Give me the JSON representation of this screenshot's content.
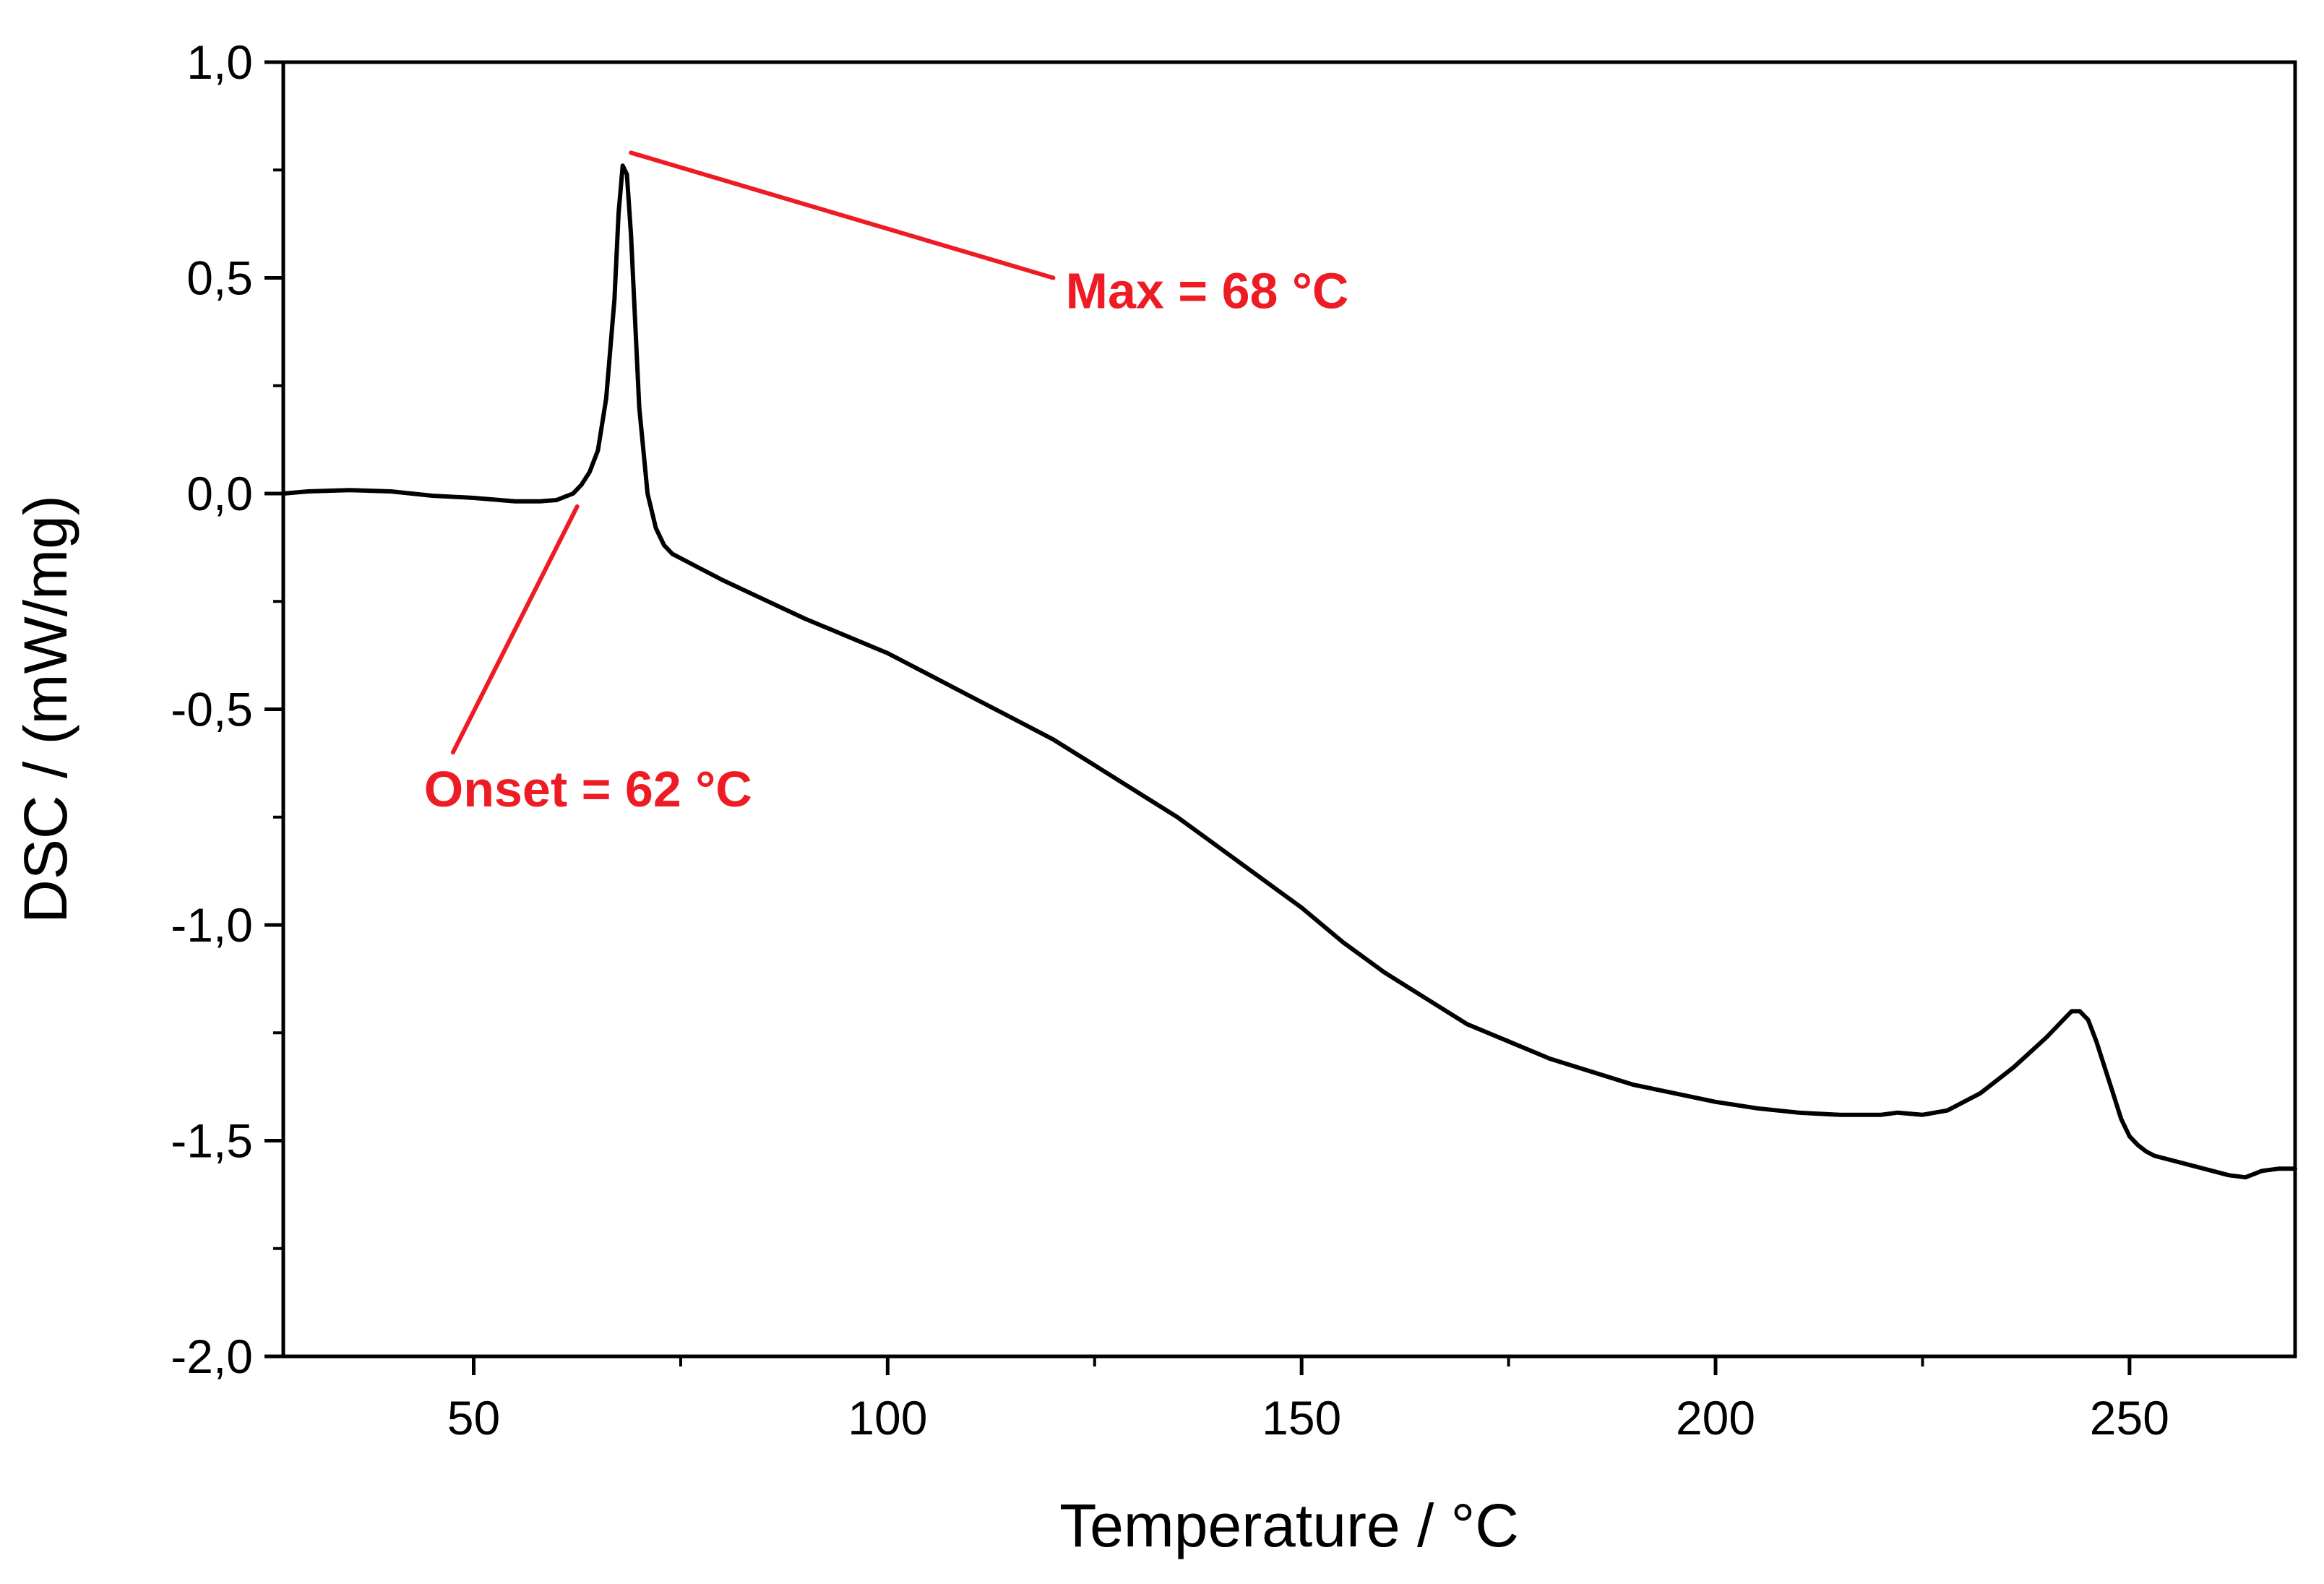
{
  "chart_data": {
    "type": "line",
    "title": "",
    "xlabel": "Temperature / °C",
    "ylabel": "DSC / (mW/mg)",
    "xlim": [
      27,
      270
    ],
    "ylim": [
      -2.0,
      1.0
    ],
    "x_ticks": [
      {
        "value": 50,
        "label": "50"
      },
      {
        "value": 100,
        "label": "100"
      },
      {
        "value": 150,
        "label": "150"
      },
      {
        "value": 200,
        "label": "200"
      },
      {
        "value": 250,
        "label": "250"
      }
    ],
    "x_minor_ticks": [
      75,
      125,
      175,
      225
    ],
    "y_ticks": [
      {
        "value": 1.0,
        "label": "1,0"
      },
      {
        "value": 0.5,
        "label": "0,5"
      },
      {
        "value": 0.0,
        "label": "0,0"
      },
      {
        "value": -0.5,
        "label": "-0,5"
      },
      {
        "value": -1.0,
        "label": "-1,0"
      },
      {
        "value": -1.5,
        "label": "-1,5"
      },
      {
        "value": -2.0,
        "label": "-2,0"
      }
    ],
    "y_minor_ticks": [
      0.75,
      0.25,
      -0.25,
      -0.75,
      -1.25,
      -1.75
    ],
    "grid": false,
    "series": [
      {
        "name": "DSC",
        "color": "#000000",
        "x": [
          27,
          30,
          35,
          40,
          45,
          50,
          55,
          58,
          60,
          62,
          63,
          64,
          65,
          66,
          67,
          67.5,
          68,
          68.5,
          69,
          69.5,
          70,
          71,
          72,
          73,
          74,
          75,
          77,
          80,
          85,
          90,
          95,
          100,
          105,
          110,
          115,
          120,
          125,
          130,
          135,
          140,
          145,
          150,
          155,
          160,
          165,
          170,
          175,
          180,
          185,
          190,
          195,
          200,
          205,
          210,
          215,
          220,
          222,
          225,
          228,
          232,
          236,
          240,
          242,
          243,
          244,
          245,
          246,
          247,
          248,
          249,
          250,
          251,
          252,
          253,
          255,
          258,
          260,
          262,
          264,
          266,
          268,
          270
        ],
        "y": [
          0.0,
          0.005,
          0.008,
          0.005,
          -0.005,
          -0.01,
          -0.018,
          -0.018,
          -0.015,
          0.0,
          0.02,
          0.05,
          0.1,
          0.22,
          0.45,
          0.65,
          0.76,
          0.74,
          0.6,
          0.4,
          0.2,
          0.0,
          -0.08,
          -0.12,
          -0.14,
          -0.15,
          -0.17,
          -0.2,
          -0.245,
          -0.29,
          -0.33,
          -0.37,
          -0.42,
          -0.47,
          -0.52,
          -0.57,
          -0.63,
          -0.69,
          -0.75,
          -0.82,
          -0.89,
          -0.96,
          -1.04,
          -1.11,
          -1.17,
          -1.23,
          -1.27,
          -1.31,
          -1.34,
          -1.37,
          -1.39,
          -1.41,
          -1.425,
          -1.435,
          -1.44,
          -1.44,
          -1.435,
          -1.44,
          -1.43,
          -1.39,
          -1.33,
          -1.26,
          -1.22,
          -1.2,
          -1.2,
          -1.22,
          -1.27,
          -1.33,
          -1.39,
          -1.45,
          -1.49,
          -1.51,
          -1.525,
          -1.535,
          -1.545,
          -1.56,
          -1.57,
          -1.58,
          -1.585,
          -1.57,
          -1.565,
          -1.565
        ]
      }
    ],
    "annotations": [
      {
        "text": "Max = 68 °C",
        "color": "#ed1c24",
        "point": [
          69,
          0.79
        ],
        "line_end": [
          120,
          0.5
        ],
        "text_anchor_point": [
          121.5,
          0.43
        ]
      },
      {
        "text": "Onset = 62 °C",
        "color": "#ed1c24",
        "point": [
          62.5,
          -0.03
        ],
        "line_end": [
          47.5,
          -0.6
        ],
        "text_anchor_point": [
          44,
          -0.725
        ]
      }
    ]
  }
}
